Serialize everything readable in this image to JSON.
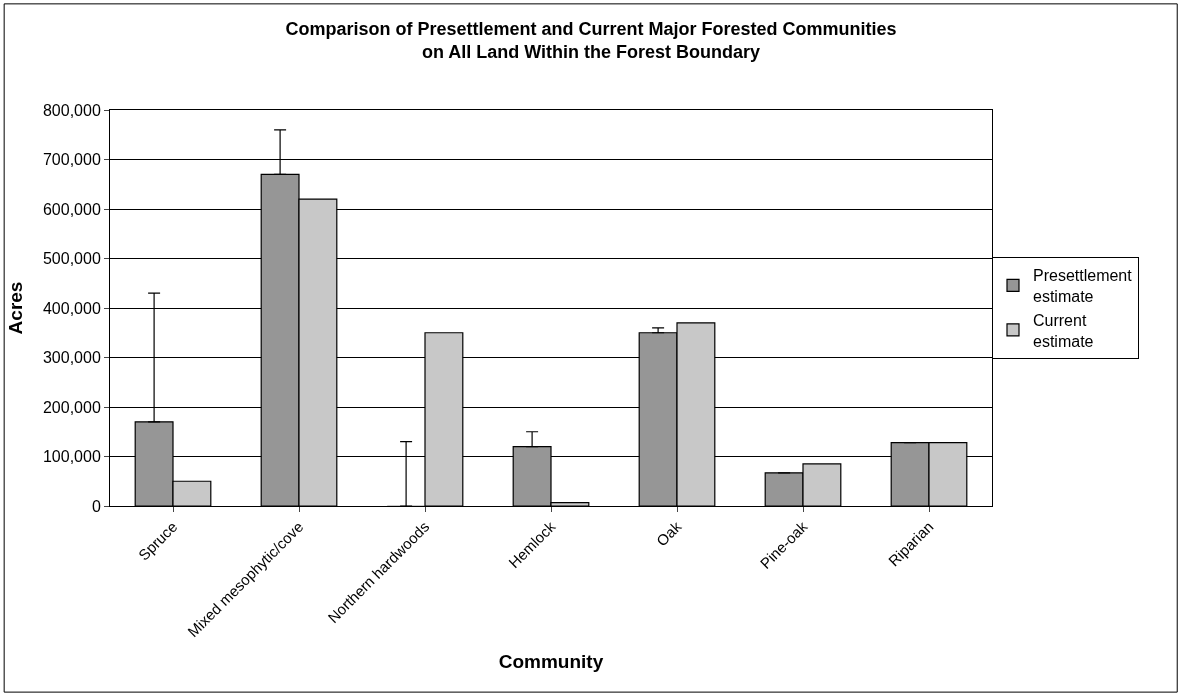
{
  "chart_data": {
    "type": "bar",
    "title": "Comparison of Presettlement and Current Major Forested Communities\non All Land Within the Forest Boundary",
    "xlabel": "Community",
    "ylabel": "Acres",
    "categories": [
      "Spruce",
      "Mixed mesophytic/cove",
      "Northern hardwoods",
      "Hemlock",
      "Oak",
      "Pine-oak",
      "Riparian"
    ],
    "series": [
      {
        "name": "Presettlement estimate",
        "color": "#969696",
        "values": [
          170000,
          670000,
          0,
          120000,
          350000,
          67000,
          128000
        ],
        "errors": [
          [
            170000,
            430000
          ],
          [
            670000,
            760000
          ],
          [
            0,
            130000
          ],
          [
            120000,
            150000
          ],
          [
            350000,
            360000
          ],
          null,
          null
        ]
      },
      {
        "name": "Current estimate",
        "color": "#c8c8c8",
        "values": [
          50000,
          620000,
          350000,
          7000,
          370000,
          85000,
          128000
        ]
      }
    ],
    "ylim": [
      0,
      800000
    ],
    "yticks": [
      {
        "value": 0,
        "label": "0"
      },
      {
        "value": 100000,
        "label": "100,000"
      },
      {
        "value": 200000,
        "label": "200,000"
      },
      {
        "value": 300000,
        "label": "300,000"
      },
      {
        "value": 400000,
        "label": "400,000"
      },
      {
        "value": 500000,
        "label": "500,000"
      },
      {
        "value": 600000,
        "label": "600,000"
      },
      {
        "value": 700000,
        "label": "700,000"
      },
      {
        "value": 800000,
        "label": "800,000"
      }
    ],
    "grid": "y",
    "legend": "right"
  }
}
